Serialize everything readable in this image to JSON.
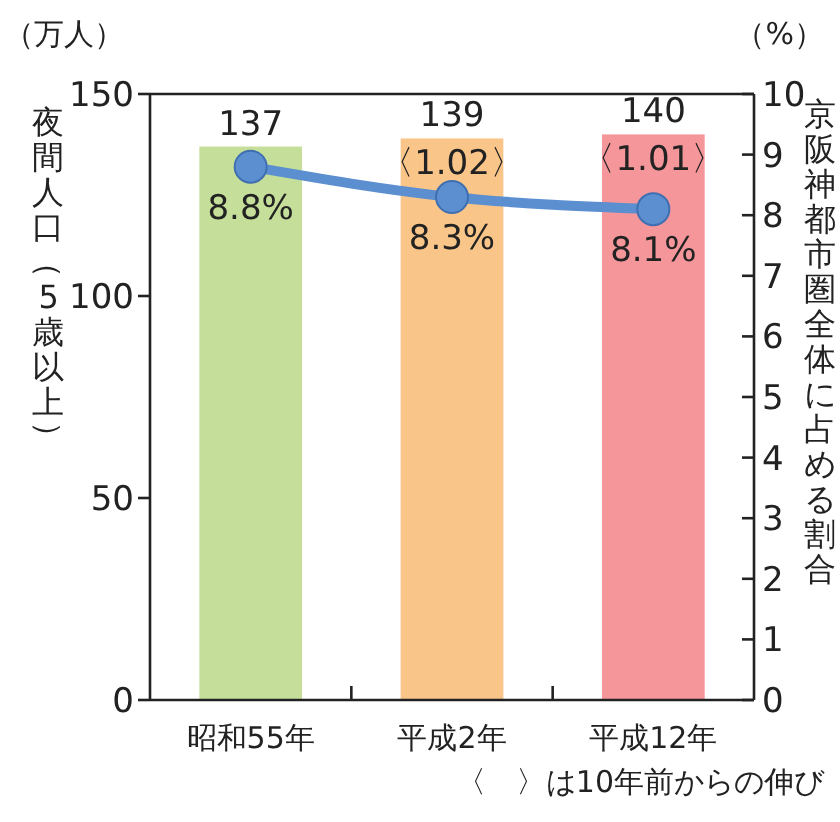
{
  "chart_data": {
    "type": "bar",
    "categories": [
      "昭和55年",
      "平成2年",
      "平成12年"
    ],
    "ylabel": "夜間人口（5歳以上）",
    "y2label": "京阪神都市圏全体に占める割合",
    "ylim": [
      0,
      150
    ],
    "yticks": [
      0,
      50,
      100,
      150
    ],
    "y2lim": [
      0,
      10
    ],
    "y2ticks": [
      0,
      1,
      2,
      3,
      4,
      5,
      6,
      7,
      8,
      9,
      10
    ],
    "series": [
      {
        "colors": [
          "#c5df9a",
          "#fac589",
          "#f5969b"
        ],
        "values": [
          137,
          139,
          140
        ],
        "value_labels": [
          "137",
          "139",
          "140"
        ]
      },
      {
        "type": "line",
        "axis": "y2",
        "color": "#5b8fd0",
        "values": [
          8.8,
          8.3,
          8.1
        ],
        "value_labels": [
          "8.8%",
          "8.3%",
          "8.1%"
        ],
        "marker": "circle",
        "line_style": "solid"
      }
    ],
    "annotations": [
      "（万人）",
      "（%）",
      "〈　〉は10年前からの伸び",
      {
        "text": "〈1.02〉",
        "x": "平成2年",
        "y": 139
      },
      {
        "text": "〈1.01〉",
        "x": "平成12年",
        "y": 140
      }
    ],
    "marker": "circle"
  }
}
